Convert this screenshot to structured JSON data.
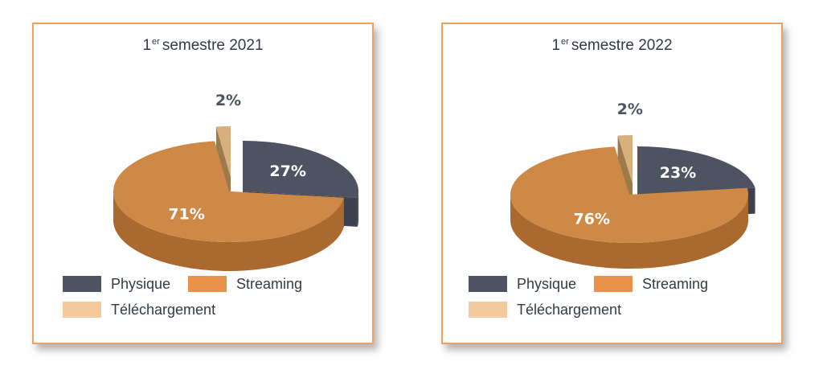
{
  "colors": {
    "physique": "#4e5362",
    "physique_side": "#3d414e",
    "streaming": "#cf8946",
    "streaming_side": "#a9692f",
    "telechargement": "#d7b07e",
    "telechargement_side": "#9c7a4c",
    "legend_streaming": "#e8924a",
    "legend_telechargement": "#f3c99d",
    "border": "#f0a060"
  },
  "legend": {
    "physique": "Physique",
    "streaming": "Streaming",
    "telechargement": "Téléchargement"
  },
  "chart_data": [
    {
      "type": "pie",
      "title_num": "1",
      "title_sup": "er",
      "title_rest": "semestre 2021",
      "categories": [
        "Physique",
        "Streaming",
        "Téléchargement"
      ],
      "values": [
        27,
        71,
        2
      ],
      "labels": [
        "27%",
        "71%",
        "2%"
      ]
    },
    {
      "type": "pie",
      "title_num": "1",
      "title_sup": "er",
      "title_rest": "semestre 2022",
      "categories": [
        "Physique",
        "Streaming",
        "Téléchargement"
      ],
      "values": [
        23,
        76,
        2
      ],
      "labels": [
        "23%",
        "76%",
        "2%"
      ]
    }
  ]
}
